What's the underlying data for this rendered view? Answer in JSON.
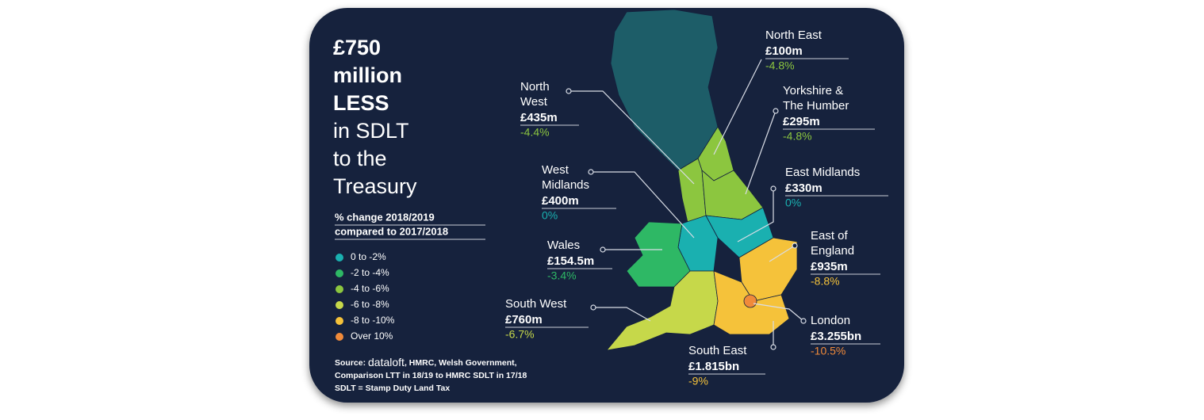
{
  "headline": {
    "bold": [
      "£750",
      "million",
      "LESS"
    ],
    "light": [
      "in SDLT",
      "to the",
      "Treasury"
    ]
  },
  "legend": {
    "title": [
      "% change 2018/2019",
      "compared to 2017/2018"
    ],
    "items": [
      {
        "label": "0 to -2%",
        "color": "#1ab0b0"
      },
      {
        "label": "-2 to -4%",
        "color": "#2eb865"
      },
      {
        "label": "-4 to -6%",
        "color": "#8cc63f"
      },
      {
        "label": "-6 to -8%",
        "color": "#c6d84a"
      },
      {
        "label": "-8 to -10%",
        "color": "#f5c23a"
      },
      {
        "label": "Over 10%",
        "color": "#f08a3a"
      }
    ]
  },
  "regions": [
    {
      "name": [
        "North East"
      ],
      "amount": "£100m",
      "change": "-4.8%",
      "color": "#8cc63f"
    },
    {
      "name": [
        "North",
        "West"
      ],
      "amount": "£435m",
      "change": "-4.4%",
      "color": "#8cc63f"
    },
    {
      "name": [
        "Yorkshire &",
        "The Humber"
      ],
      "amount": "£295m",
      "change": "-4.8%",
      "color": "#8cc63f"
    },
    {
      "name": [
        "West",
        "Midlands"
      ],
      "amount": "£400m",
      "change": "0%",
      "color": "#1ab0b0"
    },
    {
      "name": [
        "East Midlands"
      ],
      "amount": "£330m",
      "change": "0%",
      "color": "#1ab0b0"
    },
    {
      "name": [
        "Wales"
      ],
      "amount": "£154.5m",
      "change": "-3.4%",
      "color": "#2eb865"
    },
    {
      "name": [
        "East of",
        "England"
      ],
      "amount": "£935m",
      "change": "-8.8%",
      "color": "#f5c23a"
    },
    {
      "name": [
        "London"
      ],
      "amount": "£3.255bn",
      "change": "-10.5%",
      "color": "#f08a3a"
    },
    {
      "name": [
        "South East"
      ],
      "amount": "£1.815bn",
      "change": "-9%",
      "color": "#f5c23a"
    },
    {
      "name": [
        "South West"
      ],
      "amount": "£760m",
      "change": "-6.7%",
      "color": "#c6d84a"
    }
  ],
  "source": {
    "prefix": "Source:",
    "brand": "dataloft",
    "rest": ", HMRC, Welsh Government,",
    "lines": [
      "Comparison LTT in 18/19 to HMRC SDLT in 17/18",
      "SDLT = Stamp Duty Land Tax"
    ]
  }
}
